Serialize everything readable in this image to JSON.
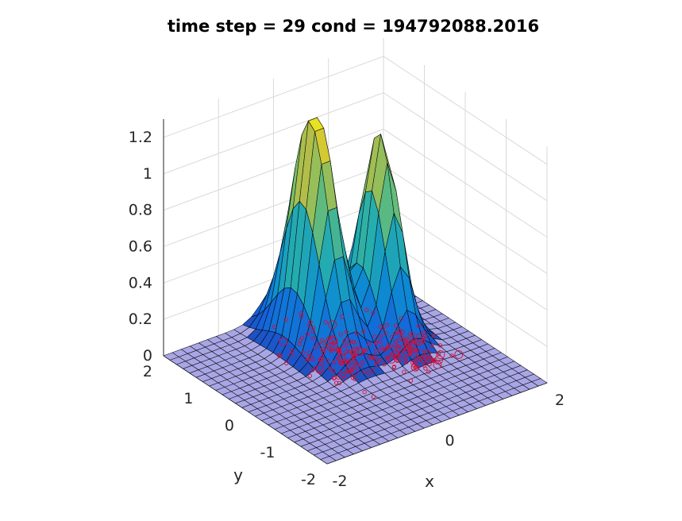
{
  "chart_data": {
    "type": "surface3d",
    "title": "time step = 29 cond = 194792088.2016",
    "xlabel": "x",
    "ylabel": "y",
    "zlabel": "",
    "xlim": [
      -2,
      2
    ],
    "ylim": [
      -2,
      2
    ],
    "zlim": [
      0,
      1.3
    ],
    "x_ticks": [
      -2,
      0,
      2
    ],
    "y_ticks": [
      -2,
      -1,
      0,
      1,
      2
    ],
    "z_ticks": [
      0,
      0.2,
      0.4,
      0.6,
      0.8,
      1,
      1.2
    ],
    "x_tick_labels": [
      "-2",
      "0",
      "2"
    ],
    "y_tick_labels": [
      "-2",
      "-1",
      "0",
      "1",
      "2"
    ],
    "z_tick_labels": [
      "0",
      "0.2",
      "0.4",
      "0.6",
      "0.8",
      "1",
      "1.2"
    ],
    "grid": true,
    "surface": {
      "description_of_shape": "two Gaussian-like peaks over a flat base",
      "peaks": [
        {
          "x": 0.0,
          "y": 1.0,
          "height": 1.29
        },
        {
          "x": 0.9,
          "y": 0.6,
          "height": 1.12
        }
      ],
      "colormap": "parula",
      "edge_color": "#000000"
    },
    "scatter": {
      "marker": "circle",
      "color": "#d0103a",
      "region": "cluster of particles near the base of the peaks, z ≈ 0"
    }
  }
}
